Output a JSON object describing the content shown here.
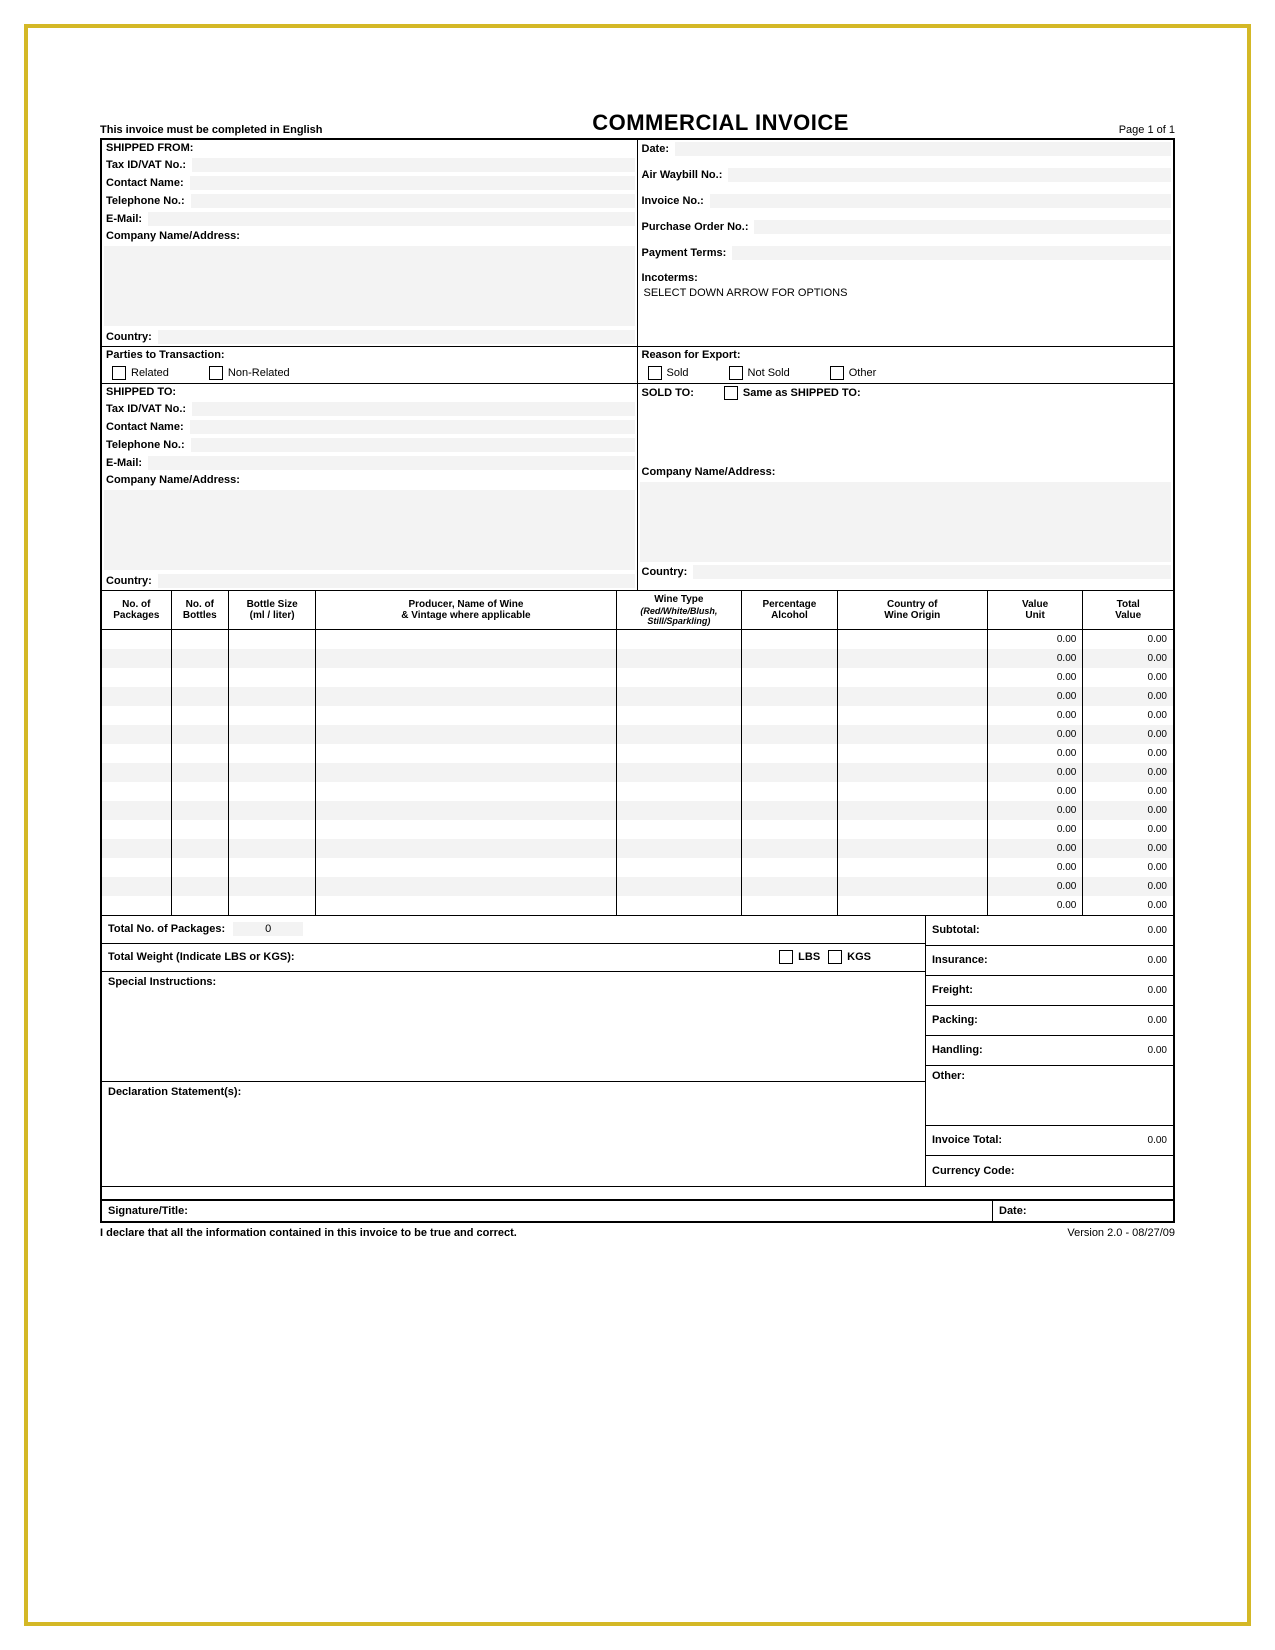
{
  "header": {
    "notice": "This invoice must be completed in English",
    "title": "COMMERCIAL INVOICE",
    "page_label": "Page 1 of 1"
  },
  "shipped_from": {
    "heading": "SHIPPED FROM:",
    "tax_id_label": "Tax ID/VAT No.:",
    "contact_label": "Contact Name:",
    "phone_label": "Telephone No.:",
    "email_label": "E-Mail:",
    "company_label": "Company Name/Address:",
    "country_label": "Country:"
  },
  "right_header": {
    "date_label": "Date:",
    "awb_label": "Air Waybill No.:",
    "invoice_label": "Invoice No.:",
    "po_label": "Purchase Order No.:",
    "terms_label": "Payment Terms:",
    "incoterms_label": "Incoterms:",
    "incoterms_select": "SELECT DOWN ARROW FOR OPTIONS"
  },
  "parties": {
    "heading": "Parties to Transaction:",
    "related": "Related",
    "non_related": "Non-Related"
  },
  "reason": {
    "heading": "Reason for Export:",
    "sold": "Sold",
    "not_sold": "Not Sold",
    "other": "Other"
  },
  "shipped_to": {
    "heading": "SHIPPED TO:",
    "tax_id_label": "Tax ID/VAT No.:",
    "contact_label": "Contact Name:",
    "phone_label": "Telephone No.:",
    "email_label": "E-Mail:",
    "company_label": "Company Name/Address:",
    "country_label": "Country:"
  },
  "sold_to": {
    "heading": "SOLD TO:",
    "same_as": "Same as SHIPPED TO:",
    "company_label": "Company Name/Address:",
    "country_label": "Country:"
  },
  "items_table": {
    "headers": {
      "packages": "No. of\nPackages",
      "bottles": "No. of\nBottles",
      "bottle_size": "Bottle Size\n(ml / liter)",
      "producer": "Producer, Name of Wine\n& Vintage where applicable",
      "wine_type": "Wine Type",
      "wine_type_sub": "(Red/White/Blush,\nStill/Sparkling)",
      "percent_alc": "Percentage\nAlcohol",
      "country_origin": "Country of\nWine Origin",
      "value_unit": "Value\nUnit",
      "total_value": "Total\nValue"
    },
    "row_count": 15,
    "default_unit": "0.00",
    "default_total": "0.00"
  },
  "totals_left": {
    "total_pkg_label": "Total No. of Packages:",
    "total_pkg_value": "0",
    "total_weight_label": "Total Weight (Indicate LBS or KGS):",
    "lbs": "LBS",
    "kgs": "KGS",
    "special_label": "Special Instructions:",
    "declaration_label": "Declaration Statement(s):"
  },
  "totals_right": {
    "subtotal": "Subtotal:",
    "insurance": "Insurance:",
    "freight": "Freight:",
    "packing": "Packing:",
    "handling": "Handling:",
    "other": "Other:",
    "invoice_total": "Invoice Total:",
    "currency": "Currency Code:",
    "amount": "0.00"
  },
  "signature": {
    "sig_label": "Signature/Title:",
    "date_label": "Date:"
  },
  "footer": {
    "declaration": "I declare that all the information contained in this invoice to be true and correct.",
    "version": "Version 2.0 - 08/27/09"
  },
  "colors": {
    "frame": "#d4b826",
    "fill": "#f3f3f3",
    "border": "#000000"
  }
}
